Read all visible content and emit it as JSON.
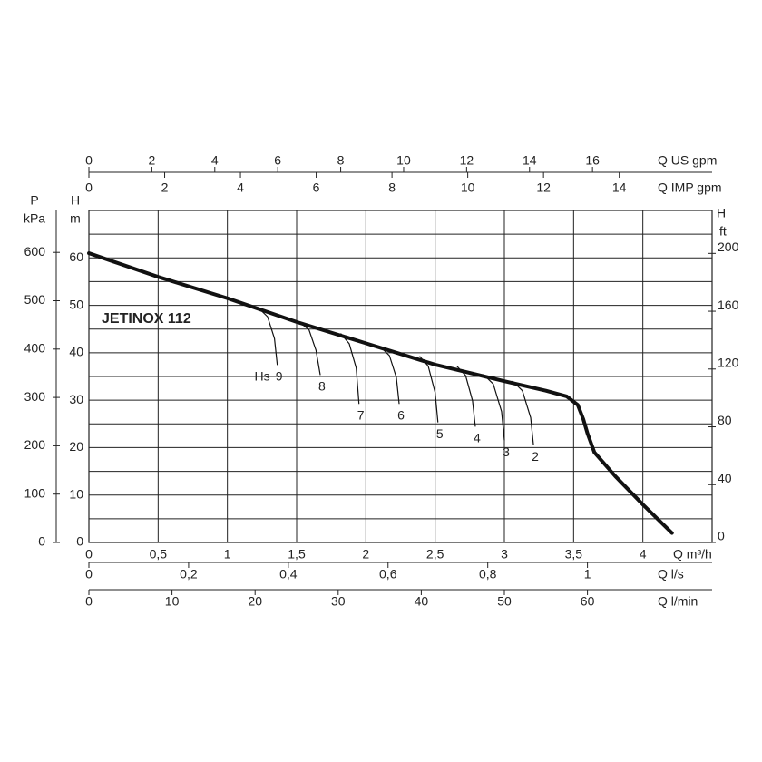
{
  "chart_data": {
    "type": "line",
    "title": "JETINOX 112",
    "x_label": "Q m³/h",
    "xlim": [
      0,
      4.5
    ],
    "xticks": [
      0,
      {
        "value": 0.5,
        "label": "0,5"
      },
      1,
      {
        "value": 1.5,
        "label": "1,5"
      },
      2,
      {
        "value": 2.5,
        "label": "2,5"
      },
      3,
      {
        "value": 3.5,
        "label": "3,5"
      },
      4
    ],
    "y_label": "H",
    "y_unit": "m",
    "ylim": [
      0,
      70
    ],
    "yticks": [
      0,
      10,
      20,
      30,
      40,
      50,
      60
    ],
    "minor_yticks": [
      5,
      15,
      25,
      35,
      45,
      55,
      65,
      70
    ],
    "grid": true,
    "series": [
      {
        "color": "#111111",
        "x": [
          0,
          0.5,
          1,
          1.5,
          2,
          2.5,
          3,
          3.3,
          3.45,
          3.53,
          3.57,
          3.6,
          3.65,
          3.8,
          4,
          4.21
        ],
        "values": [
          61,
          56,
          51.5,
          46.5,
          42,
          37.5,
          34,
          32,
          30.8,
          29,
          26,
          23,
          19,
          14,
          8,
          2
        ]
      }
    ],
    "suction_label": "Hs",
    "suction_curves": [
      {
        "name": "9",
        "x": [
          1.23,
          1.29,
          1.34,
          1.36
        ],
        "values": [
          49.3,
          47.6,
          43.0,
          37.5
        ]
      },
      {
        "name": "8",
        "x": [
          1.52,
          1.59,
          1.64,
          1.67
        ],
        "values": [
          46.5,
          44.8,
          40.5,
          35.4
        ]
      },
      {
        "name": "7",
        "x": [
          1.82,
          1.88,
          1.93,
          1.95
        ],
        "values": [
          44,
          41.9,
          36.8,
          29.3
        ]
      },
      {
        "name": "6",
        "x": [
          2.11,
          2.17,
          2.22,
          2.24
        ],
        "values": [
          41.1,
          39.4,
          34.8,
          29.3
        ]
      },
      {
        "name": "5",
        "x": [
          2.39,
          2.45,
          2.5,
          2.52
        ],
        "values": [
          39.2,
          37.2,
          31.6,
          25.4
        ]
      },
      {
        "name": "4",
        "x": [
          2.66,
          2.72,
          2.77,
          2.79
        ],
        "values": [
          37.1,
          35.2,
          29.9,
          24.5
        ]
      },
      {
        "name": "3",
        "x": [
          2.85,
          2.92,
          2.98,
          3.0
        ],
        "values": [
          35.4,
          33.4,
          27.6,
          21.6
        ]
      },
      {
        "name": "2",
        "x": [
          3.06,
          3.13,
          3.19,
          3.21
        ],
        "values": [
          34,
          32,
          26.3,
          20.6
        ]
      }
    ],
    "extra_axes": [
      {
        "position": "left",
        "label": "P",
        "unit": "kPa",
        "lim": [
          0,
          686.7
        ],
        "ticks": [
          0,
          100,
          200,
          300,
          400,
          500,
          600
        ]
      },
      {
        "position": "right",
        "label": "H",
        "unit": "ft",
        "lim": [
          0,
          229.7
        ],
        "ticks": [
          0,
          40,
          80,
          120,
          160,
          200
        ]
      },
      {
        "position": "top",
        "label": "Q US gpm",
        "lim": [
          0,
          19.8
        ],
        "ticks": [
          0,
          2,
          4,
          6,
          8,
          10,
          12,
          14,
          16
        ]
      },
      {
        "position": "top-inner",
        "label": "Q IMP gpm",
        "lim": [
          0,
          16.45
        ],
        "ticks": [
          0,
          2,
          4,
          6,
          8,
          10,
          12,
          14
        ]
      },
      {
        "position": "bottom",
        "label": "Q l/s",
        "lim": [
          0,
          1.25
        ],
        "ticks": [
          0,
          {
            "value": 0.2,
            "label": "0,2"
          },
          {
            "value": 0.4,
            "label": "0,4"
          },
          {
            "value": 0.6,
            "label": "0,6"
          },
          {
            "value": 0.8,
            "label": "0,8"
          },
          1
        ]
      },
      {
        "position": "bottom-outer",
        "label": "Q l/min",
        "lim": [
          0,
          75
        ],
        "ticks": [
          0,
          10,
          20,
          30,
          40,
          50,
          60
        ]
      }
    ]
  }
}
